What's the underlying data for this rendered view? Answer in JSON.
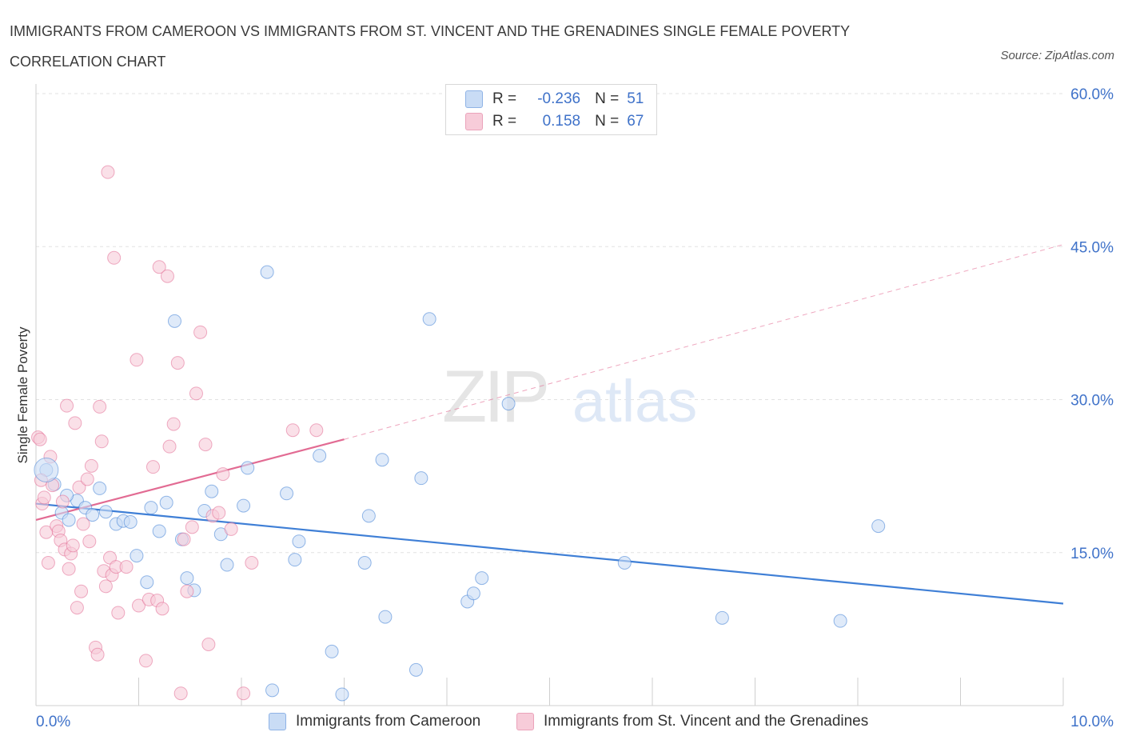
{
  "title": "IMMIGRANTS FROM CAMEROON VS IMMIGRANTS FROM ST. VINCENT AND THE GRENADINES SINGLE FEMALE POVERTY CORRELATION CHART",
  "source": "Source: ZipAtlas.com",
  "watermark": {
    "zip": "ZIP",
    "atlas": "atlas"
  },
  "legend": {
    "r_label": "R =",
    "n_label": "N =",
    "rows": [
      {
        "r": "-0.236",
        "n": "51",
        "color": "#a9c8f0"
      },
      {
        "r": "0.158",
        "n": "67",
        "color": "#f5b9cb"
      }
    ]
  },
  "bottom_legend": [
    {
      "label": "Immigrants from Cameroon",
      "color": "#a9c8f0"
    },
    {
      "label": "Immigrants from St. Vincent and the Grenadines",
      "color": "#f5b9cb"
    }
  ],
  "chart_data": {
    "type": "scatter",
    "ylabel": "Single Female Poverty",
    "xlabel": "",
    "xlim": [
      0,
      10
    ],
    "ylim": [
      0,
      60
    ],
    "x_tick_labels": [
      {
        "value": 0,
        "label": "0.0%"
      },
      {
        "value": 10,
        "label": "10.0%"
      }
    ],
    "y_tick_labels": [
      {
        "value": 15,
        "label": "15.0%"
      },
      {
        "value": 30,
        "label": "30.0%"
      },
      {
        "value": 45,
        "label": "45.0%"
      },
      {
        "value": 60,
        "label": "60.0%"
      }
    ],
    "grid": true,
    "series": [
      {
        "name": "Immigrants from Cameroon",
        "color": "#3f7fd6",
        "fill": "#c9dcf5",
        "points": [
          [
            0.1,
            23.1
          ],
          [
            0.18,
            21.7
          ],
          [
            0.25,
            18.9
          ],
          [
            0.32,
            18.2
          ],
          [
            0.4,
            20.1
          ],
          [
            0.48,
            19.4
          ],
          [
            0.55,
            18.7
          ],
          [
            0.62,
            21.3
          ],
          [
            0.68,
            19.0
          ],
          [
            0.78,
            17.8
          ],
          [
            0.85,
            18.1
          ],
          [
            0.92,
            18.0
          ],
          [
            0.98,
            14.7
          ],
          [
            1.08,
            12.1
          ],
          [
            1.12,
            19.4
          ],
          [
            1.2,
            17.1
          ],
          [
            1.27,
            19.9
          ],
          [
            1.35,
            37.7
          ],
          [
            1.42,
            16.3
          ],
          [
            1.47,
            12.5
          ],
          [
            1.54,
            11.3
          ],
          [
            1.64,
            19.1
          ],
          [
            1.71,
            21.0
          ],
          [
            1.8,
            16.8
          ],
          [
            1.86,
            13.8
          ],
          [
            2.02,
            19.6
          ],
          [
            2.06,
            23.3
          ],
          [
            2.25,
            42.5
          ],
          [
            2.3,
            1.5
          ],
          [
            2.44,
            20.8
          ],
          [
            2.52,
            14.3
          ],
          [
            2.56,
            16.1
          ],
          [
            2.76,
            24.5
          ],
          [
            2.88,
            5.3
          ],
          [
            2.98,
            1.1
          ],
          [
            3.2,
            14.0
          ],
          [
            3.24,
            18.6
          ],
          [
            3.37,
            24.1
          ],
          [
            3.4,
            8.7
          ],
          [
            3.7,
            3.5
          ],
          [
            3.75,
            22.3
          ],
          [
            3.83,
            37.9
          ],
          [
            4.2,
            10.2
          ],
          [
            4.26,
            11.0
          ],
          [
            4.34,
            12.5
          ],
          [
            4.6,
            29.6
          ],
          [
            5.73,
            14.0
          ],
          [
            6.68,
            8.6
          ],
          [
            8.2,
            17.6
          ],
          [
            7.83,
            8.3
          ],
          [
            0.3,
            20.6
          ]
        ],
        "trend": {
          "x": [
            0,
            10
          ],
          "y": [
            19.8,
            10.0
          ]
        }
      },
      {
        "name": "Immigrants from St. Vincent and the Grenadines",
        "color": "#e26b93",
        "fill": "#f7ccd9",
        "points": [
          [
            0.02,
            26.3
          ],
          [
            0.05,
            22.1
          ],
          [
            0.06,
            19.8
          ],
          [
            0.08,
            20.4
          ],
          [
            0.1,
            17.0
          ],
          [
            0.12,
            14.0
          ],
          [
            0.14,
            24.4
          ],
          [
            0.16,
            21.6
          ],
          [
            0.2,
            17.6
          ],
          [
            0.22,
            17.1
          ],
          [
            0.24,
            16.2
          ],
          [
            0.26,
            20.0
          ],
          [
            0.28,
            15.3
          ],
          [
            0.3,
            29.4
          ],
          [
            0.32,
            13.4
          ],
          [
            0.34,
            14.9
          ],
          [
            0.36,
            15.7
          ],
          [
            0.38,
            27.7
          ],
          [
            0.4,
            9.6
          ],
          [
            0.42,
            21.4
          ],
          [
            0.44,
            11.2
          ],
          [
            0.46,
            17.8
          ],
          [
            0.5,
            22.2
          ],
          [
            0.52,
            16.1
          ],
          [
            0.54,
            23.5
          ],
          [
            0.58,
            5.7
          ],
          [
            0.6,
            5.0
          ],
          [
            0.62,
            29.3
          ],
          [
            0.64,
            25.9
          ],
          [
            0.66,
            13.2
          ],
          [
            0.68,
            11.7
          ],
          [
            0.7,
            52.3
          ],
          [
            0.72,
            14.5
          ],
          [
            0.74,
            12.8
          ],
          [
            0.76,
            43.9
          ],
          [
            0.78,
            13.6
          ],
          [
            0.8,
            9.1
          ],
          [
            0.88,
            13.6
          ],
          [
            0.98,
            33.9
          ],
          [
            1.0,
            9.8
          ],
          [
            1.07,
            4.4
          ],
          [
            1.1,
            10.4
          ],
          [
            1.14,
            23.4
          ],
          [
            1.18,
            10.3
          ],
          [
            1.2,
            43.0
          ],
          [
            1.23,
            9.5
          ],
          [
            1.28,
            42.1
          ],
          [
            1.3,
            25.4
          ],
          [
            1.34,
            27.6
          ],
          [
            1.38,
            33.6
          ],
          [
            1.41,
            1.2
          ],
          [
            1.44,
            16.3
          ],
          [
            1.47,
            11.2
          ],
          [
            1.52,
            17.5
          ],
          [
            1.56,
            30.6
          ],
          [
            1.6,
            36.6
          ],
          [
            1.65,
            25.6
          ],
          [
            1.68,
            6.0
          ],
          [
            1.72,
            18.6
          ],
          [
            1.78,
            18.9
          ],
          [
            1.82,
            22.7
          ],
          [
            1.9,
            17.3
          ],
          [
            2.02,
            1.2
          ],
          [
            2.1,
            14.0
          ],
          [
            2.5,
            27.0
          ],
          [
            2.73,
            27.0
          ],
          [
            0.04,
            26.1
          ]
        ],
        "trend": {
          "x": [
            0,
            3.0
          ],
          "y": [
            18.2,
            26.1
          ]
        },
        "trend_extension": {
          "x": [
            3.0,
            10
          ],
          "y": [
            26.1,
            45.2
          ]
        }
      }
    ]
  }
}
